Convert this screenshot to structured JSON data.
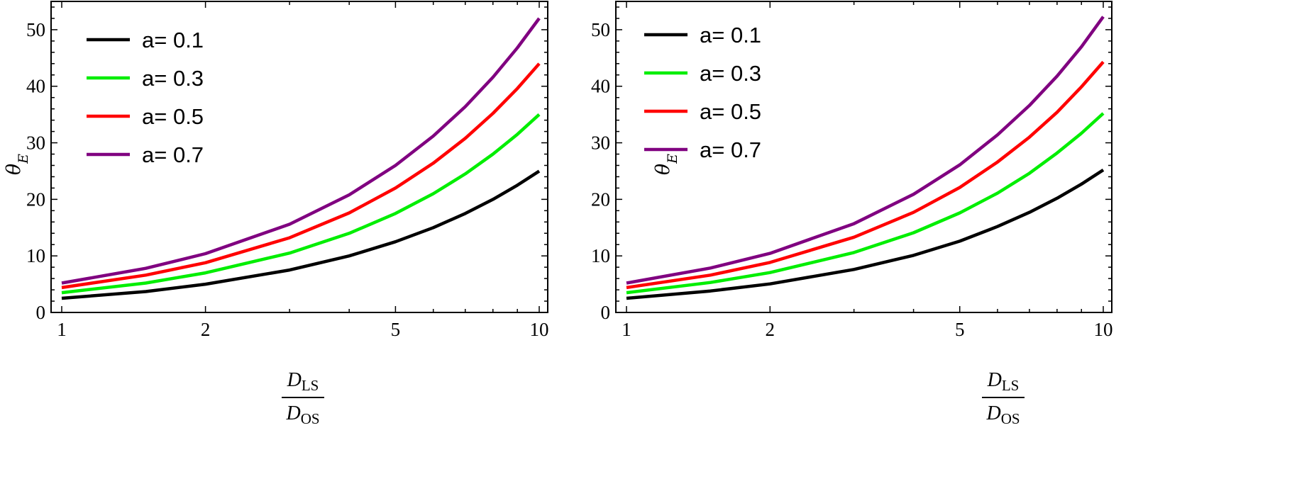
{
  "chart_data": [
    {
      "type": "line",
      "xscale": "log",
      "xlim": [
        1,
        10
      ],
      "ylim": [
        0,
        55
      ],
      "xticks": [
        1,
        2,
        5,
        10
      ],
      "yticks": [
        0,
        10,
        20,
        30,
        40,
        50
      ],
      "xlabel": "D_LS / D_OS",
      "ylabel": "θ_E",
      "legend_position": "top-left",
      "grid": false,
      "series": [
        {
          "name": "a= 0.1",
          "color": "#000000",
          "x": [
            1,
            1.5,
            2,
            3,
            4,
            5,
            6,
            7,
            8,
            9,
            10
          ],
          "y": [
            2.5,
            3.7,
            5.0,
            7.5,
            10.0,
            12.5,
            15.0,
            17.5,
            20.0,
            22.5,
            25.0
          ]
        },
        {
          "name": "a= 0.3",
          "color": "#00ee00",
          "x": [
            1,
            1.5,
            2,
            3,
            4,
            5,
            6,
            7,
            8,
            9,
            10
          ],
          "y": [
            3.5,
            5.2,
            7.0,
            10.5,
            14.0,
            17.5,
            21.0,
            24.5,
            28.0,
            31.5,
            35.0
          ]
        },
        {
          "name": "a= 0.5",
          "color": "#ff0000",
          "x": [
            1,
            1.5,
            2,
            3,
            4,
            5,
            6,
            7,
            8,
            9,
            10
          ],
          "y": [
            4.4,
            6.6,
            8.8,
            13.2,
            17.6,
            22.0,
            26.4,
            30.8,
            35.2,
            39.6,
            44.0
          ]
        },
        {
          "name": "a= 0.7",
          "color": "#800080",
          "x": [
            1,
            1.5,
            2,
            3,
            4,
            5,
            6,
            7,
            8,
            9,
            10
          ],
          "y": [
            5.2,
            7.8,
            10.4,
            15.6,
            20.8,
            26.0,
            31.2,
            36.4,
            41.6,
            46.8,
            52.0
          ]
        }
      ]
    },
    {
      "type": "line",
      "xscale": "log",
      "xlim": [
        1,
        10
      ],
      "ylim": [
        0,
        55
      ],
      "xticks": [
        1,
        2,
        5,
        10
      ],
      "yticks": [
        0,
        10,
        20,
        30,
        40,
        50
      ],
      "xlabel": "D_LS / D_OS",
      "ylabel": "θ_E",
      "legend_position": "top-left",
      "grid": false,
      "series": [
        {
          "name": "a= 0.1",
          "color": "#000000",
          "x": [
            1,
            1.5,
            2,
            3,
            4,
            5,
            6,
            7,
            8,
            9,
            10
          ],
          "y": [
            2.5,
            3.8,
            5.05,
            7.6,
            10.1,
            12.6,
            15.2,
            17.7,
            20.2,
            22.7,
            25.2
          ]
        },
        {
          "name": "a= 0.3",
          "color": "#00ee00",
          "x": [
            1,
            1.5,
            2,
            3,
            4,
            5,
            6,
            7,
            8,
            9,
            10
          ],
          "y": [
            3.5,
            5.3,
            7.05,
            10.6,
            14.1,
            17.6,
            21.1,
            24.6,
            28.2,
            31.7,
            35.2
          ]
        },
        {
          "name": "a= 0.5",
          "color": "#ff0000",
          "x": [
            1,
            1.5,
            2,
            3,
            4,
            5,
            6,
            7,
            8,
            9,
            10
          ],
          "y": [
            4.4,
            6.6,
            8.85,
            13.3,
            17.7,
            22.1,
            26.6,
            31.0,
            35.4,
            39.9,
            44.3
          ]
        },
        {
          "name": "a= 0.7",
          "color": "#800080",
          "x": [
            1,
            1.5,
            2,
            3,
            4,
            5,
            6,
            7,
            8,
            9,
            10
          ],
          "y": [
            5.2,
            7.85,
            10.45,
            15.7,
            20.9,
            26.1,
            31.4,
            36.6,
            41.8,
            47.0,
            52.3
          ]
        }
      ]
    }
  ],
  "labels": {
    "ylabel_main": "θ",
    "ylabel_sub": "E",
    "xlabel_num_main": "D",
    "xlabel_num_sub": "LS",
    "xlabel_den_main": "D",
    "xlabel_den_sub": "OS"
  }
}
